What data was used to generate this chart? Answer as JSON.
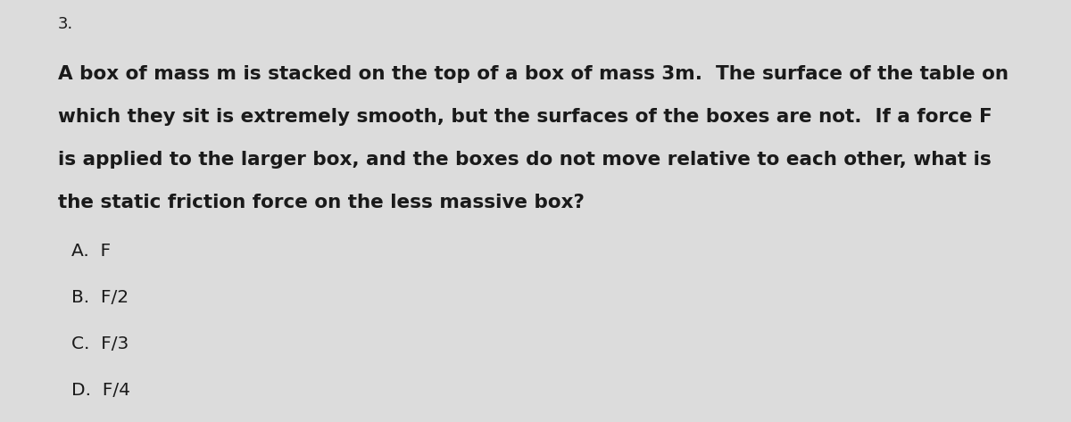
{
  "background_color": "#dcdcdc",
  "question_number": "3.",
  "question_number_fontsize": 13,
  "paragraph_lines": [
    "A box of mass m is stacked on the top of a box of mass 3m.  The surface of the table on",
    "which they sit is extremely smooth, but the surfaces of the boxes are not.  If a force F",
    "is applied to the larger box, and the boxes do not move relative to each other, what is",
    "the static friction force on the less massive box?"
  ],
  "paragraph_fontsize": 15.5,
  "choices": [
    "A.  F",
    "B.  F/2",
    "C.  F/3",
    "D.  F/4"
  ],
  "choices_fontsize": 14.5,
  "text_color": "#1a1a1a"
}
